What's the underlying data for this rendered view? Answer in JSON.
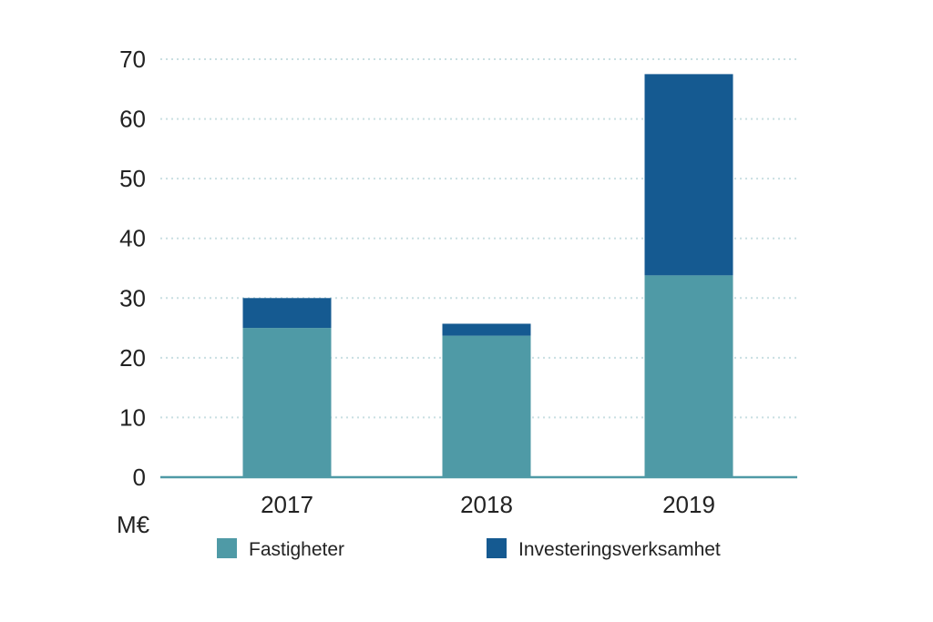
{
  "chart_data": {
    "type": "bar",
    "stacked": true,
    "categories": [
      "2017",
      "2018",
      "2019"
    ],
    "series": [
      {
        "name": "Fastigheter",
        "values": [
          25,
          23.7,
          33.8
        ],
        "color": "#4f9aa6"
      },
      {
        "name": "Investeringsverksamhet",
        "values": [
          5,
          2,
          33.7
        ],
        "color": "#155a91"
      }
    ],
    "ylabel": "M€",
    "ylim": [
      0,
      70
    ],
    "yticks": [
      0,
      10,
      20,
      30,
      40,
      50,
      60,
      70
    ],
    "grid": true,
    "legend_position": "bottom",
    "axis_color": "#4f9aa6",
    "grid_color": "#c9dfe2"
  }
}
